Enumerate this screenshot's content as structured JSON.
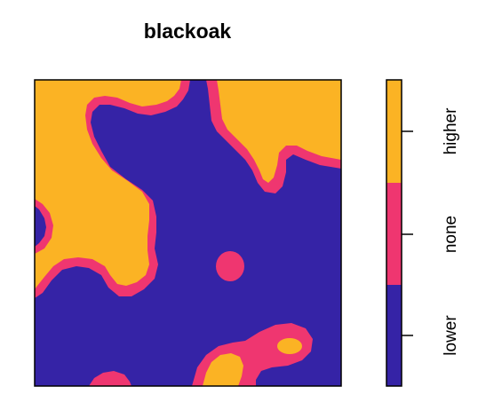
{
  "chart_data": {
    "type": "heatmap",
    "title": "blackoak",
    "categories": [
      "lower",
      "none",
      "higher"
    ],
    "colors": {
      "lower": "#3523A6",
      "none": "#EF3670",
      "higher": "#FBB324"
    },
    "legend_placement": "right",
    "grid": false,
    "regions": {
      "higher": [
        "Large region covering upper-left and left-center",
        "Region covering upper-right",
        "Patch at bottom-center",
        "Small oval at lower-right"
      ],
      "none": [
        "Thin bands bordering every higher region",
        "Isolated circular blob at center",
        "Small patch at bottom-left",
        "Band around left-edge notch"
      ],
      "lower": [
        "Remaining background including center and lower-left"
      ]
    }
  }
}
